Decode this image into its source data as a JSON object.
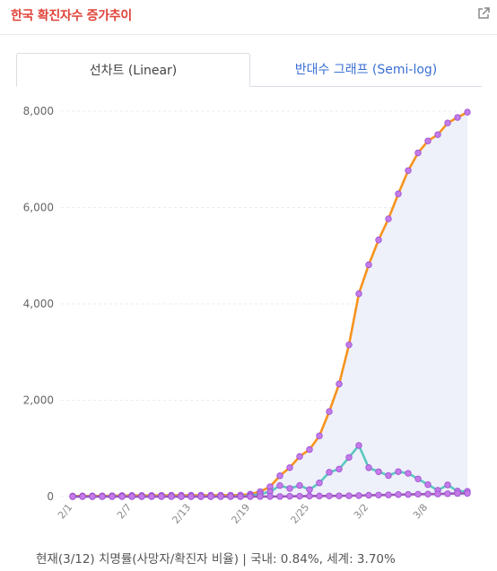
{
  "header": {
    "title": "한국 확진자수 증가추이",
    "external_link_icon": "external-link-icon"
  },
  "tabs": [
    {
      "label": "선차트 (Linear)",
      "active": true
    },
    {
      "label": "반대수 그래프 (Semi-log)",
      "active": false
    }
  ],
  "footer": {
    "text": "현재(3/12) 치명률(사망자/확진자 비율) | 국내: 0.84%, 세계: 3.70%"
  },
  "colors": {
    "confirmed": "#f7931e",
    "new": "#5bc8c0",
    "deaths": "#9b59b6",
    "marker": "#c47be8",
    "area": "#eef0fa",
    "title": "#e0433a",
    "tab_link": "#3b6fd4"
  },
  "chart_data": {
    "type": "line",
    "x": [
      "2/1",
      "2/2",
      "2/3",
      "2/4",
      "2/5",
      "2/6",
      "2/7",
      "2/8",
      "2/9",
      "2/10",
      "2/11",
      "2/12",
      "2/13",
      "2/14",
      "2/15",
      "2/16",
      "2/17",
      "2/18",
      "2/19",
      "2/20",
      "2/21",
      "2/22",
      "2/23",
      "2/24",
      "2/25",
      "2/26",
      "2/27",
      "2/28",
      "2/29",
      "3/1",
      "3/2",
      "3/3",
      "3/4",
      "3/5",
      "3/6",
      "3/7",
      "3/8",
      "3/9",
      "3/10",
      "3/11",
      "3/12"
    ],
    "tick_labels": [
      "2/1",
      "2/7",
      "2/13",
      "2/19",
      "2/25",
      "3/2",
      "3/8"
    ],
    "ylim": [
      0,
      8000
    ],
    "yticks": [
      "0",
      "2,000",
      "4,000",
      "6,000",
      "8,000"
    ],
    "grid": true,
    "series": [
      {
        "values": [
          12,
          15,
          15,
          16,
          18,
          23,
          24,
          24,
          25,
          27,
          28,
          28,
          28,
          28,
          28,
          29,
          30,
          31,
          51,
          104,
          204,
          433,
          602,
          833,
          977,
          1261,
          1766,
          2337,
          3150,
          4212,
          4812,
          5328,
          5766,
          6284,
          6767,
          7134,
          7382,
          7513,
          7755,
          7869,
          7979
        ]
      },
      {
        "values": [
          0,
          3,
          0,
          1,
          2,
          5,
          1,
          0,
          1,
          2,
          1,
          0,
          0,
          0,
          0,
          1,
          1,
          1,
          20,
          53,
          100,
          229,
          169,
          231,
          144,
          284,
          505,
          571,
          813,
          1062,
          600,
          516,
          438,
          518,
          483,
          367,
          248,
          131,
          242,
          114,
          110
        ]
      },
      {
        "values": [
          0,
          0,
          0,
          0,
          0,
          0,
          0,
          0,
          0,
          0,
          0,
          0,
          0,
          0,
          0,
          0,
          0,
          0,
          0,
          1,
          2,
          2,
          6,
          8,
          11,
          12,
          13,
          16,
          17,
          21,
          28,
          32,
          35,
          42,
          44,
          50,
          51,
          54,
          60,
          66,
          67
        ]
      }
    ]
  }
}
